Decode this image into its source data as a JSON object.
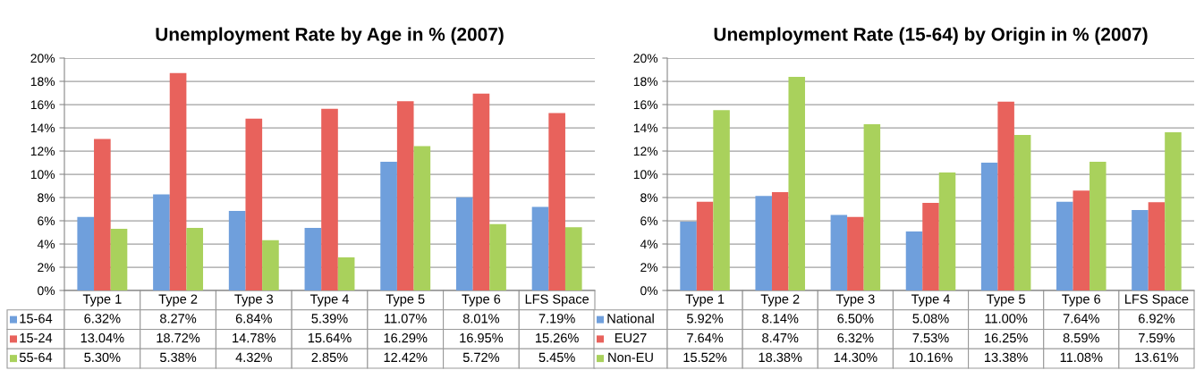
{
  "chart_data": [
    {
      "type": "bar",
      "legend": "bottom",
      "title": "Unemployment Rate by Age in % (2007)",
      "categories": [
        "Type 1",
        "Type 2",
        "Type 3",
        "Type 4",
        "Type 5",
        "Type 6",
        "LFS Space"
      ],
      "ylim": [
        0,
        20
      ],
      "yticks": [
        {
          "value": 0,
          "label": "0%"
        },
        {
          "value": 2,
          "label": "2%"
        },
        {
          "value": 4,
          "label": "4%"
        },
        {
          "value": 6,
          "label": "6%"
        },
        {
          "value": 8,
          "label": "8%"
        },
        {
          "value": 10,
          "label": "10%"
        },
        {
          "value": 12,
          "label": "12%"
        },
        {
          "value": 14,
          "label": "14%"
        },
        {
          "value": 16,
          "label": "16%"
        },
        {
          "value": 18,
          "label": "18%"
        },
        {
          "value": 20,
          "label": "20%"
        }
      ],
      "grid": "y",
      "series": [
        {
          "name": "15-64",
          "color": "#6f9fdc",
          "values": [
            6.32,
            8.27,
            6.84,
            5.39,
            11.07,
            8.01,
            7.19
          ],
          "value_labels": [
            "6.32%",
            "8.27%",
            "6.84%",
            "5.39%",
            "11.07%",
            "8.01%",
            "7.19%"
          ]
        },
        {
          "name": "15-24",
          "color": "#e8625c",
          "values": [
            13.04,
            18.72,
            14.78,
            15.64,
            16.29,
            16.95,
            15.26
          ],
          "value_labels": [
            "13.04%",
            "18.72%",
            "14.78%",
            "15.64%",
            "16.29%",
            "16.95%",
            "15.26%"
          ]
        },
        {
          "name": "55-64",
          "color": "#a9d15c",
          "values": [
            5.3,
            5.38,
            4.32,
            2.85,
            12.42,
            5.72,
            5.45
          ],
          "value_labels": [
            "5.30%",
            "5.38%",
            "4.32%",
            "2.85%",
            "12.42%",
            "5.72%",
            "5.45%"
          ]
        }
      ]
    },
    {
      "type": "bar",
      "legend": "bottom",
      "title": "Unemployment Rate (15-64) by Origin in % (2007)",
      "categories": [
        "Type 1",
        "Type 2",
        "Type 3",
        "Type 4",
        "Type 5",
        "Type 6",
        "LFS Space"
      ],
      "ylim": [
        0,
        20
      ],
      "yticks": [
        {
          "value": 0,
          "label": "0%"
        },
        {
          "value": 2,
          "label": "2%"
        },
        {
          "value": 4,
          "label": "4%"
        },
        {
          "value": 6,
          "label": "6%"
        },
        {
          "value": 8,
          "label": "8%"
        },
        {
          "value": 10,
          "label": "10%"
        },
        {
          "value": 12,
          "label": "12%"
        },
        {
          "value": 14,
          "label": "14%"
        },
        {
          "value": 16,
          "label": "16%"
        },
        {
          "value": 18,
          "label": "18%"
        },
        {
          "value": 20,
          "label": "20%"
        }
      ],
      "grid": "y",
      "series": [
        {
          "name": "National",
          "color": "#6f9fdc",
          "values": [
            5.92,
            8.14,
            6.5,
            5.08,
            11.0,
            7.64,
            6.92
          ],
          "value_labels": [
            "5.92%",
            "8.14%",
            "6.50%",
            "5.08%",
            "11.00%",
            "7.64%",
            "6.92%"
          ]
        },
        {
          "name": "EU27",
          "color": "#e8625c",
          "values": [
            7.64,
            8.47,
            6.32,
            7.53,
            16.25,
            8.59,
            7.59
          ],
          "value_labels": [
            "7.64%",
            "8.47%",
            "6.32%",
            "7.53%",
            "16.25%",
            "8.59%",
            "7.59%"
          ]
        },
        {
          "name": "Non-EU",
          "color": "#a9d15c",
          "values": [
            15.52,
            18.38,
            14.3,
            10.16,
            13.38,
            11.08,
            13.61
          ],
          "value_labels": [
            "15.52%",
            "18.38%",
            "14.30%",
            "10.16%",
            "13.38%",
            "11.08%",
            "13.61%"
          ]
        }
      ]
    }
  ]
}
